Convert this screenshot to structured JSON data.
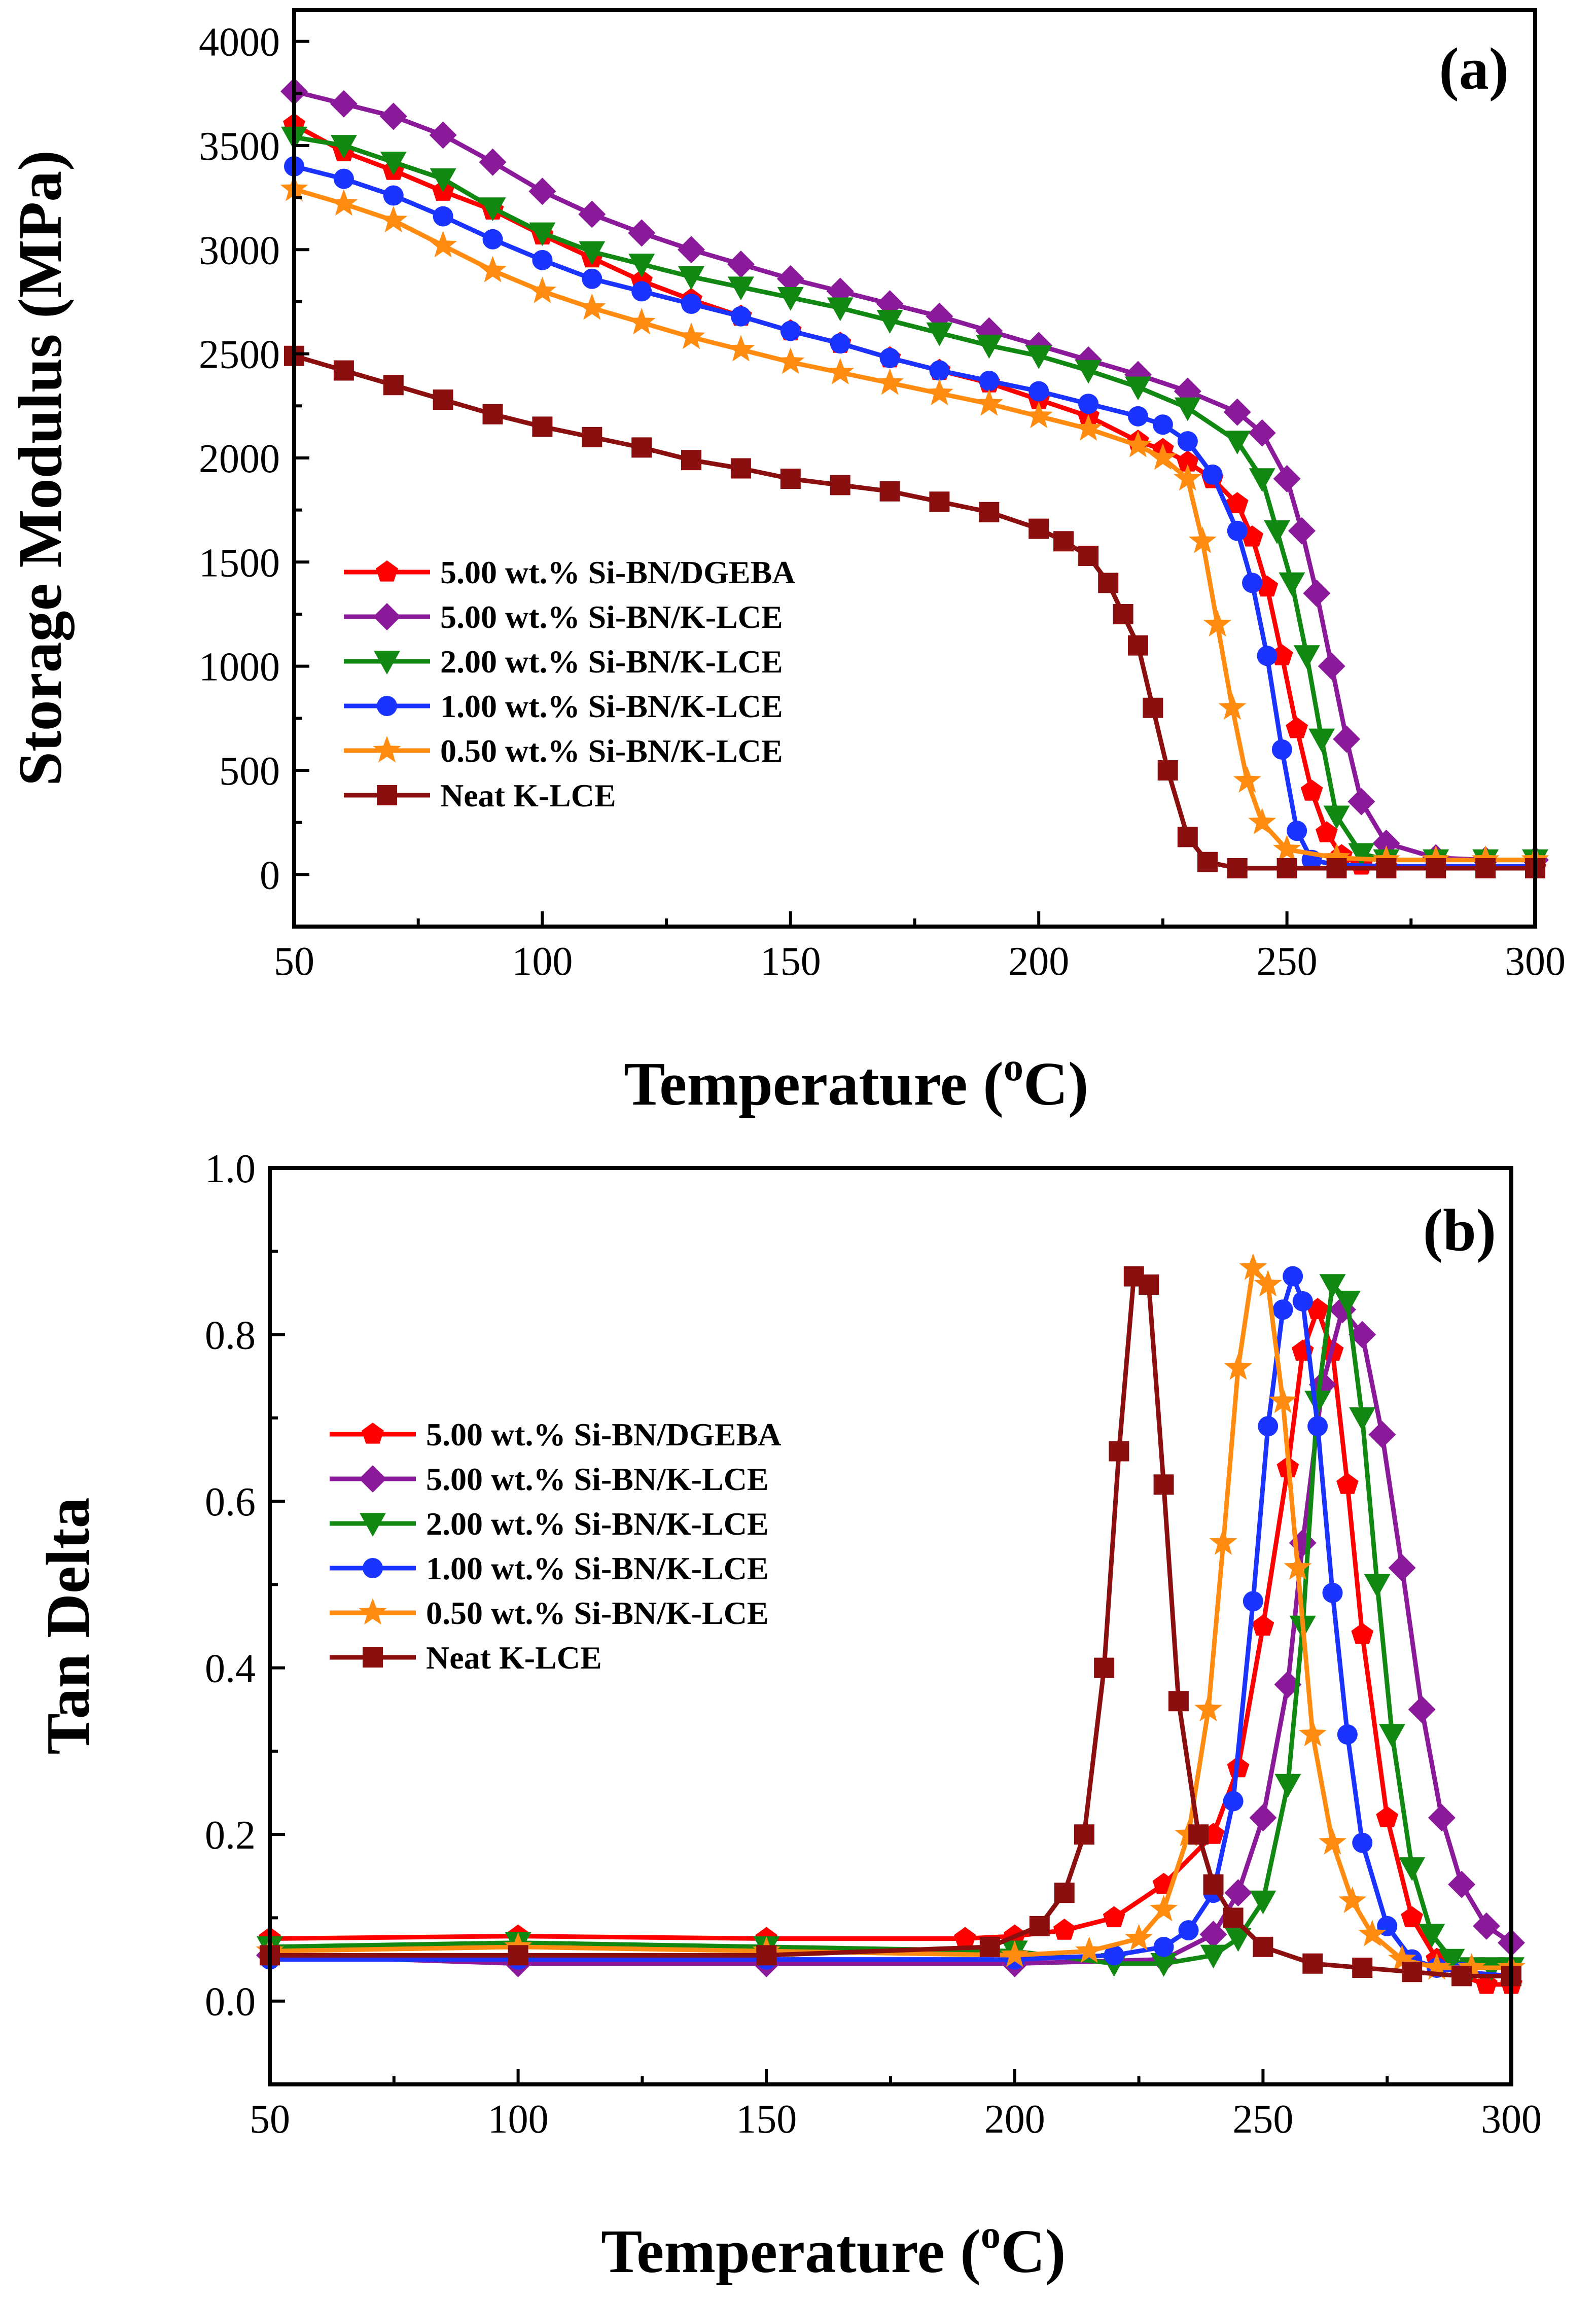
{
  "chart_data": [
    {
      "type": "line",
      "panel_label": "(a)",
      "xlabel": "Temperature (",
      "xlabel_sup": "o",
      "xlabel_unit": "C)",
      "ylabel": "Storage Modulus (MPa)",
      "xlim": [
        50,
        300
      ],
      "ylim": [
        -250,
        4150
      ],
      "xticks": [
        50,
        100,
        150,
        200,
        250,
        300
      ],
      "yticks": [
        0,
        500,
        1000,
        1500,
        2000,
        2500,
        3000,
        3500,
        4000
      ],
      "grid": false,
      "legend_position": "center-left",
      "series": [
        {
          "name": "5.00 wt.% Si-BN/DGEBA",
          "color": "#ff0000",
          "marker": "pentagon",
          "x": [
            50,
            60,
            70,
            80,
            90,
            100,
            110,
            120,
            130,
            140,
            150,
            160,
            170,
            180,
            190,
            200,
            210,
            220,
            225,
            230,
            235,
            240,
            243,
            246,
            249,
            252,
            255,
            258,
            261,
            265,
            270,
            280,
            290,
            300
          ],
          "y": [
            3600,
            3470,
            3380,
            3280,
            3190,
            3070,
            2960,
            2850,
            2760,
            2680,
            2610,
            2550,
            2480,
            2420,
            2360,
            2280,
            2200,
            2080,
            2040,
            1980,
            1900,
            1780,
            1620,
            1380,
            1050,
            700,
            400,
            200,
            90,
            45,
            35,
            30,
            30,
            30
          ]
        },
        {
          "name": "5.00 wt.% Si-BN/K-LCE",
          "color": "#8b1a9b",
          "marker": "diamond",
          "x": [
            50,
            60,
            70,
            80,
            90,
            100,
            110,
            120,
            130,
            140,
            150,
            160,
            170,
            180,
            190,
            200,
            210,
            220,
            230,
            240,
            245,
            250,
            253,
            256,
            259,
            262,
            265,
            270,
            280,
            290,
            300
          ],
          "y": [
            3760,
            3700,
            3640,
            3550,
            3420,
            3280,
            3170,
            3080,
            3000,
            2930,
            2860,
            2800,
            2740,
            2680,
            2610,
            2540,
            2470,
            2400,
            2320,
            2220,
            2120,
            1900,
            1650,
            1350,
            1000,
            650,
            350,
            150,
            80,
            70,
            70
          ]
        },
        {
          "name": "2.00 wt.% Si-BN/K-LCE",
          "color": "#118811",
          "marker": "triangle-down",
          "x": [
            50,
            60,
            70,
            80,
            90,
            100,
            110,
            120,
            130,
            140,
            150,
            160,
            170,
            180,
            190,
            200,
            210,
            220,
            230,
            240,
            245,
            248,
            251,
            254,
            257,
            260,
            265,
            270,
            280,
            290,
            300
          ],
          "y": [
            3540,
            3500,
            3420,
            3340,
            3200,
            3080,
            2990,
            2930,
            2870,
            2820,
            2770,
            2720,
            2660,
            2600,
            2540,
            2490,
            2420,
            2340,
            2240,
            2080,
            1900,
            1650,
            1400,
            1050,
            650,
            280,
            100,
            70,
            70,
            70,
            70
          ]
        },
        {
          "name": "1.00 wt.% Si-BN/K-LCE",
          "color": "#1a33ff",
          "marker": "circle",
          "x": [
            50,
            60,
            70,
            80,
            90,
            100,
            110,
            120,
            130,
            140,
            150,
            160,
            170,
            180,
            190,
            200,
            210,
            220,
            225,
            230,
            235,
            240,
            243,
            246,
            249,
            252,
            255,
            260,
            270,
            280,
            290,
            300
          ],
          "y": [
            3400,
            3340,
            3260,
            3160,
            3050,
            2950,
            2860,
            2800,
            2740,
            2680,
            2610,
            2550,
            2480,
            2420,
            2370,
            2320,
            2260,
            2200,
            2160,
            2080,
            1920,
            1650,
            1400,
            1050,
            600,
            210,
            70,
            45,
            40,
            40,
            40,
            40
          ]
        },
        {
          "name": "0.50 wt.% Si-BN/K-LCE",
          "color": "#ff8c10",
          "marker": "star",
          "x": [
            50,
            60,
            70,
            80,
            90,
            100,
            110,
            120,
            130,
            140,
            150,
            160,
            170,
            180,
            190,
            200,
            210,
            220,
            225,
            230,
            233,
            236,
            239,
            242,
            245,
            250,
            260,
            270,
            280,
            290,
            300
          ],
          "y": [
            3290,
            3220,
            3140,
            3020,
            2900,
            2800,
            2720,
            2650,
            2580,
            2520,
            2460,
            2410,
            2360,
            2310,
            2260,
            2200,
            2140,
            2060,
            2000,
            1900,
            1600,
            1200,
            800,
            450,
            250,
            120,
            80,
            70,
            70,
            70,
            70
          ]
        },
        {
          "name": "Neat K-LCE",
          "color": "#8b0f0f",
          "marker": "square",
          "x": [
            50,
            60,
            70,
            80,
            90,
            100,
            110,
            120,
            130,
            140,
            150,
            160,
            170,
            180,
            190,
            200,
            205,
            210,
            214,
            217,
            220,
            223,
            226,
            230,
            234,
            240,
            250,
            260,
            270,
            280,
            290,
            300
          ],
          "y": [
            2490,
            2420,
            2350,
            2280,
            2210,
            2150,
            2100,
            2050,
            1990,
            1950,
            1900,
            1870,
            1840,
            1790,
            1740,
            1660,
            1600,
            1530,
            1400,
            1250,
            1100,
            800,
            500,
            180,
            60,
            30,
            30,
            30,
            30,
            30,
            30,
            30
          ]
        }
      ]
    },
    {
      "type": "line",
      "panel_label": "(b)",
      "xlabel": "Temperature (",
      "xlabel_sup": "o",
      "xlabel_unit": "C)",
      "ylabel": "Tan Delta",
      "xlim": [
        50,
        300
      ],
      "ylim": [
        -0.1,
        1.0
      ],
      "xticks": [
        50,
        100,
        150,
        200,
        250,
        300
      ],
      "yticks": [
        0.0,
        0.2,
        0.4,
        0.6,
        0.8,
        1.0
      ],
      "grid": false,
      "legend_position": "center-left",
      "series": [
        {
          "name": "5.00 wt.% Si-BN/DGEBA",
          "color": "#ff0000",
          "marker": "pentagon",
          "x": [
            50,
            100,
            150,
            190,
            200,
            210,
            220,
            230,
            240,
            245,
            250,
            255,
            258,
            261,
            264,
            267,
            270,
            275,
            280,
            285,
            290,
            295,
            300
          ],
          "y": [
            0.075,
            0.078,
            0.075,
            0.075,
            0.078,
            0.085,
            0.1,
            0.14,
            0.2,
            0.28,
            0.45,
            0.64,
            0.78,
            0.83,
            0.78,
            0.62,
            0.44,
            0.22,
            0.1,
            0.05,
            0.03,
            0.02,
            0.02
          ]
        },
        {
          "name": "5.00 wt.% Si-BN/K-LCE",
          "color": "#8b1a9b",
          "marker": "diamond",
          "x": [
            50,
            100,
            150,
            200,
            230,
            240,
            245,
            250,
            255,
            258,
            262,
            266,
            270,
            274,
            278,
            282,
            286,
            290,
            295,
            300
          ],
          "y": [
            0.055,
            0.045,
            0.045,
            0.045,
            0.05,
            0.08,
            0.13,
            0.22,
            0.38,
            0.55,
            0.74,
            0.83,
            0.8,
            0.68,
            0.52,
            0.35,
            0.22,
            0.14,
            0.09,
            0.07
          ]
        },
        {
          "name": "2.00 wt.% Si-BN/K-LCE",
          "color": "#118811",
          "marker": "triangle-down",
          "x": [
            50,
            100,
            150,
            200,
            220,
            230,
            240,
            245,
            250,
            255,
            258,
            261,
            264,
            267,
            270,
            273,
            276,
            280,
            284,
            288,
            292,
            296,
            300
          ],
          "y": [
            0.065,
            0.07,
            0.065,
            0.06,
            0.045,
            0.045,
            0.055,
            0.075,
            0.12,
            0.26,
            0.45,
            0.72,
            0.86,
            0.84,
            0.7,
            0.5,
            0.32,
            0.16,
            0.08,
            0.05,
            0.04,
            0.04,
            0.04
          ]
        },
        {
          "name": "1.00 wt.% Si-BN/K-LCE",
          "color": "#1a33ff",
          "marker": "circle",
          "x": [
            50,
            100,
            150,
            200,
            220,
            230,
            235,
            240,
            244,
            248,
            251,
            254,
            256,
            258,
            261,
            264,
            267,
            270,
            275,
            280,
            285,
            290,
            300
          ],
          "y": [
            0.05,
            0.05,
            0.05,
            0.05,
            0.055,
            0.065,
            0.085,
            0.13,
            0.24,
            0.48,
            0.69,
            0.83,
            0.87,
            0.84,
            0.69,
            0.49,
            0.32,
            0.19,
            0.09,
            0.05,
            0.04,
            0.035,
            0.03
          ]
        },
        {
          "name": "0.50 wt.% Si-BN/K-LCE",
          "color": "#ff8c10",
          "marker": "star",
          "x": [
            50,
            100,
            150,
            200,
            215,
            225,
            230,
            235,
            239,
            242,
            245,
            248,
            251,
            254,
            257,
            260,
            264,
            268,
            272,
            278,
            285,
            292,
            300
          ],
          "y": [
            0.06,
            0.065,
            0.06,
            0.055,
            0.06,
            0.075,
            0.11,
            0.2,
            0.35,
            0.55,
            0.76,
            0.88,
            0.86,
            0.72,
            0.52,
            0.32,
            0.19,
            0.12,
            0.08,
            0.05,
            0.04,
            0.04,
            0.04
          ]
        },
        {
          "name": "Neat K-LCE",
          "color": "#8b0f0f",
          "marker": "square",
          "x": [
            50,
            100,
            150,
            195,
            205,
            210,
            214,
            218,
            221,
            224,
            227,
            230,
            233,
            237,
            240,
            244,
            250,
            260,
            270,
            280,
            290,
            300
          ],
          "y": [
            0.055,
            0.055,
            0.055,
            0.065,
            0.09,
            0.13,
            0.2,
            0.4,
            0.66,
            0.87,
            0.86,
            0.62,
            0.36,
            0.2,
            0.14,
            0.1,
            0.065,
            0.045,
            0.04,
            0.035,
            0.03,
            0.03
          ]
        }
      ]
    }
  ]
}
